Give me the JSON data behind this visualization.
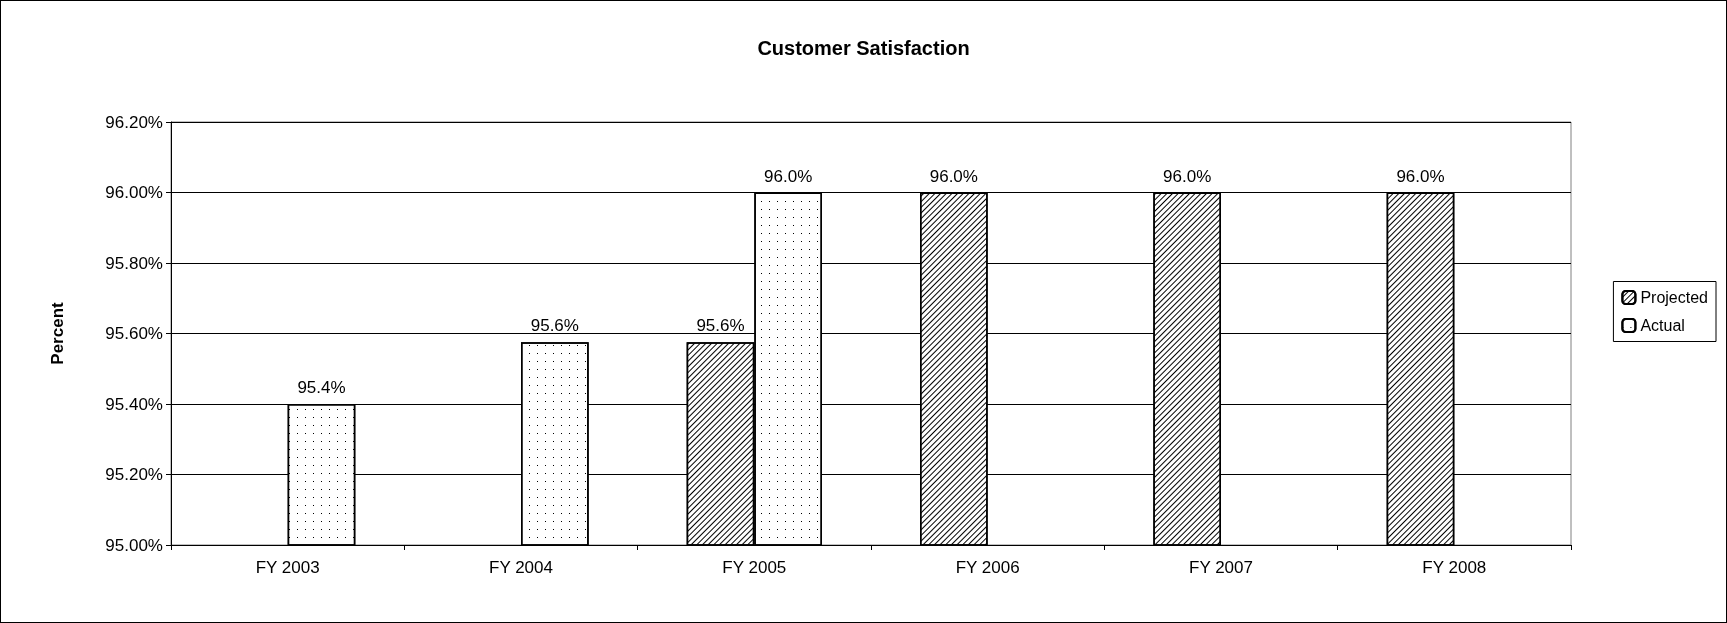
{
  "chart_data": {
    "type": "bar",
    "title": "Customer Satisfaction",
    "ylabel": "Percent",
    "categories": [
      "FY 2003",
      "FY 2004",
      "FY 2005",
      "FY 2006",
      "FY 2007",
      "FY 2008"
    ],
    "series": [
      {
        "name": "Projected",
        "color": "#ffffff",
        "values": [
          null,
          null,
          95.575,
          96.0,
          96.0,
          96.0
        ],
        "value_labels": [
          null,
          null,
          "95.6%",
          "96.0%",
          "96.0%",
          "96.0%"
        ]
      },
      {
        "name": "Actual",
        "color": "#ffffff",
        "values": [
          95.4,
          95.575,
          96.0,
          null,
          null,
          null
        ],
        "value_labels": [
          "95.4%",
          "95.6%",
          "96.0%",
          null,
          null,
          null
        ]
      }
    ],
    "ylim": [
      95.0,
      96.2
    ],
    "yticks": [
      {
        "value": 95.0,
        "label": "95.00%"
      },
      {
        "value": 95.2,
        "label": "95.20%"
      },
      {
        "value": 95.4,
        "label": "95.40%"
      },
      {
        "value": 95.6,
        "label": "95.60%"
      },
      {
        "value": 95.8,
        "label": "95.80%"
      },
      {
        "value": 96.0,
        "label": "96.00%"
      },
      {
        "value": 96.2,
        "label": "96.20%"
      }
    ],
    "grid": "y",
    "legend": "right"
  }
}
